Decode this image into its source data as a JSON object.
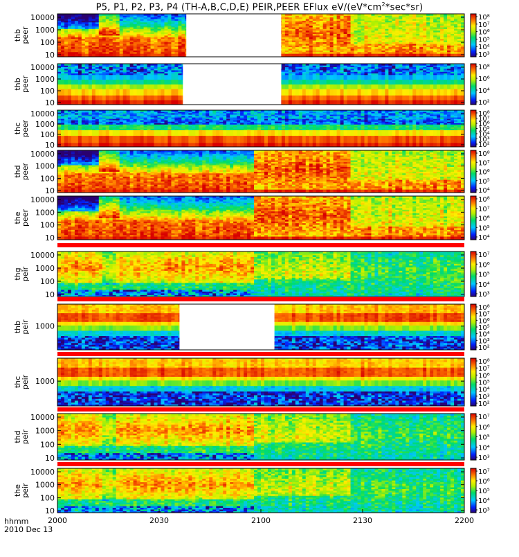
{
  "title_main": "P5, P1, P2, P3, P4 (TH-A,B,C,D,E) PEIR,PEER EFlux eV/(eV*cm",
  "title_sup": "2",
  "title_end": "*sec*sr)",
  "time_labels": {
    "unit": "hhmm",
    "date": "2010 Dec 13"
  },
  "colors": {
    "background": "#ffffff",
    "axis": "#000000",
    "separator": "#ff0000",
    "data_gap": "#ffffff"
  },
  "chart_data": {
    "type": "heatmap",
    "colormap": "rainbow (purple-blue-cyan-green-yellow-orange-red)",
    "x_axis": {
      "ticks": [
        "2000",
        "2030",
        "2100",
        "2130",
        "2200"
      ],
      "range": [
        "2000",
        "2200"
      ]
    },
    "panels": [
      {
        "label": [
          "thb",
          "peer"
        ],
        "y_ticks": [
          "10",
          "100",
          "1000",
          "10000"
        ],
        "y_scale": "log",
        "colorbar": [
          "10⁸",
          "10⁷",
          "10⁶",
          "10⁵",
          "10⁴",
          "10³"
        ],
        "data_gap": [
          "2038",
          "2106"
        ],
        "profile": "peer-full"
      },
      {
        "label": [
          "thb",
          "peer"
        ],
        "y_ticks": [
          "10",
          "100",
          "1000",
          "10000"
        ],
        "y_scale": "log",
        "colorbar": [
          "10⁸",
          "10⁶",
          "10⁴",
          "10²"
        ],
        "data_gap": [
          "2037",
          "2106"
        ],
        "profile": "peer-thb"
      },
      {
        "label": [
          "thc",
          "peer"
        ],
        "y_ticks": [
          "10",
          "100",
          "1000",
          "10000"
        ],
        "y_scale": "log",
        "colorbar": [
          "10⁸",
          "10⁷",
          "10⁶",
          "10⁵",
          "10⁴",
          "10³",
          "10²"
        ],
        "data_gap": null,
        "profile": "peer-thc"
      },
      {
        "label": [
          "thd",
          "peer"
        ],
        "y_ticks": [
          "10",
          "100",
          "1000",
          "10000"
        ],
        "y_scale": "log",
        "colorbar": [
          "10⁸",
          "10⁷",
          "10⁶",
          "10⁵",
          "10⁴"
        ],
        "data_gap": null,
        "profile": "peer-full"
      },
      {
        "label": [
          "the",
          "peer"
        ],
        "y_ticks": [
          "10",
          "100",
          "1000",
          "10000"
        ],
        "y_scale": "log",
        "colorbar": [
          "10⁸",
          "10⁷",
          "10⁶",
          "10⁵",
          "10⁴"
        ],
        "data_gap": null,
        "profile": "peer-full"
      },
      {
        "label": [
          "thg",
          "peir"
        ],
        "y_ticks": [
          "10",
          "100",
          "1000",
          "10000"
        ],
        "y_scale": "log",
        "colorbar": [
          "10⁷",
          "10⁶",
          "10⁵",
          "10⁴",
          "10³"
        ],
        "data_gap": null,
        "profile": "peir"
      },
      {
        "label": [
          "thb",
          "peir"
        ],
        "y_ticks": [
          "1000"
        ],
        "y_scale": "log",
        "colorbar": [
          "10⁸",
          "10⁷",
          "10⁶",
          "10⁵",
          "10⁴",
          "10³",
          "10²"
        ],
        "data_gap": [
          "2036",
          "2104"
        ],
        "profile": "peir-band"
      },
      {
        "label": [
          "thc",
          "peir"
        ],
        "y_ticks": [
          "1000"
        ],
        "y_scale": "log",
        "colorbar": [
          "10⁸",
          "10⁷",
          "10⁶",
          "10⁵",
          "10⁴",
          "10³",
          "10²"
        ],
        "data_gap": null,
        "profile": "peir-band"
      },
      {
        "label": [
          "thd",
          "peir"
        ],
        "y_ticks": [
          "10",
          "100",
          "1000",
          "10000"
        ],
        "y_scale": "log",
        "colorbar": [
          "10⁷",
          "10⁶",
          "10⁵",
          "10⁴",
          "10³"
        ],
        "data_gap": null,
        "profile": "peir"
      },
      {
        "label": [
          "the",
          "peir"
        ],
        "y_ticks": [
          "10",
          "100",
          "1000",
          "10000"
        ],
        "y_scale": "log",
        "colorbar": [
          "10⁷",
          "10⁶",
          "10⁵",
          "10⁴",
          "10³"
        ],
        "data_gap": null,
        "profile": "peir"
      }
    ]
  }
}
